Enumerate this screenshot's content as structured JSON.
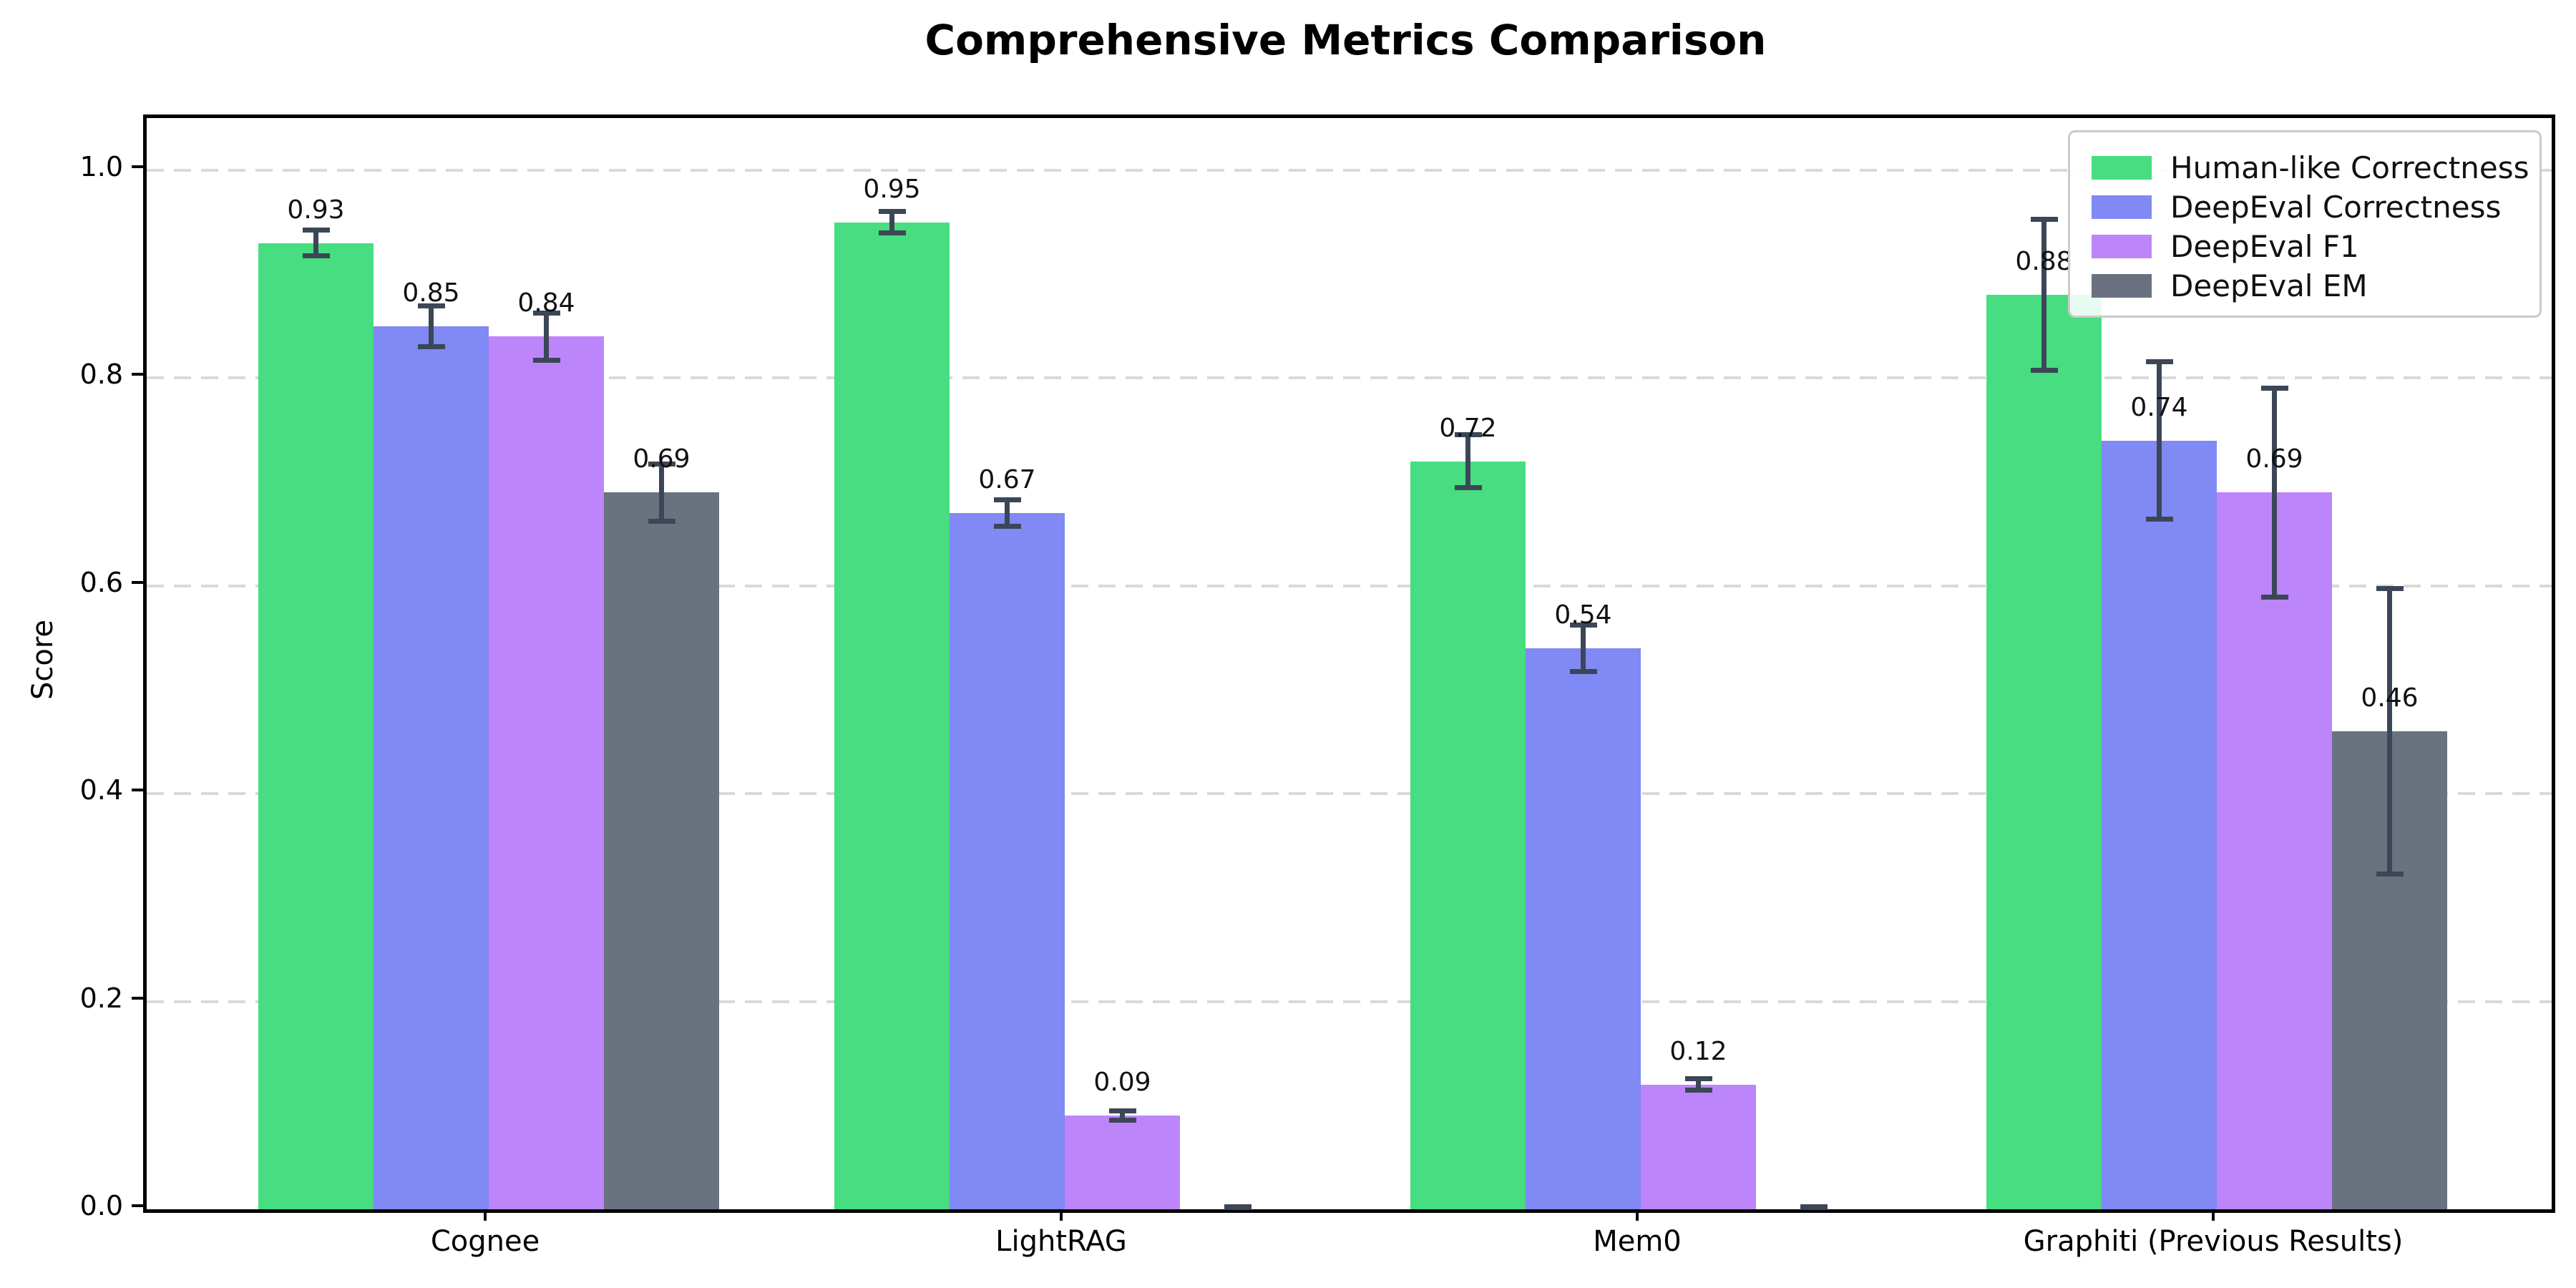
{
  "figure": {
    "title": "Comprehensive Metrics Comparison",
    "ylabel": "Score"
  },
  "chart_data": {
    "type": "bar",
    "title": "Comprehensive Metrics Comparison",
    "xlabel": "",
    "ylabel": "Score",
    "categories": [
      "Cognee",
      "LightRAG",
      "Mem0",
      "Graphiti (Previous Results)"
    ],
    "series": [
      {
        "name": "Human-like Correctness",
        "color": "#47dd80",
        "values": [
          0.93,
          0.95,
          0.72,
          0.88
        ],
        "errors": [
          0.015,
          0.013,
          0.028,
          0.075
        ],
        "labels": [
          "0.93",
          "0.95",
          "0.72",
          "0.88"
        ]
      },
      {
        "name": "DeepEval Correctness",
        "color": "#8189f5",
        "values": [
          0.85,
          0.67,
          0.54,
          0.74
        ],
        "errors": [
          0.022,
          0.015,
          0.025,
          0.078
        ],
        "labels": [
          "0.85",
          "0.67",
          "0.54",
          "0.74"
        ]
      },
      {
        "name": "DeepEval F1",
        "color": "#bd85fa",
        "values": [
          0.84,
          0.09,
          0.12,
          0.69
        ],
        "errors": [
          0.025,
          0.007,
          0.008,
          0.103
        ],
        "labels": [
          "0.84",
          "0.09",
          "0.12",
          "0.69"
        ]
      },
      {
        "name": "DeepEval EM",
        "color": "#6a7280",
        "values": [
          0.69,
          0.0,
          0.0,
          0.46
        ],
        "errors": [
          0.03,
          0.004,
          0.004,
          0.14
        ],
        "labels": [
          "0.69",
          "",
          "",
          "0.46"
        ]
      }
    ],
    "yticks": [
      "0.0",
      "0.2",
      "0.4",
      "0.6",
      "0.8",
      "1.0"
    ],
    "ytick_values": [
      0.0,
      0.2,
      0.4,
      0.6,
      0.8,
      1.0
    ],
    "ylim": [
      0,
      1.05
    ],
    "grid": "horizontal-dashed",
    "legend_position": "upper-right",
    "error_bar_color": "#3b4757",
    "frame": "full-box"
  }
}
